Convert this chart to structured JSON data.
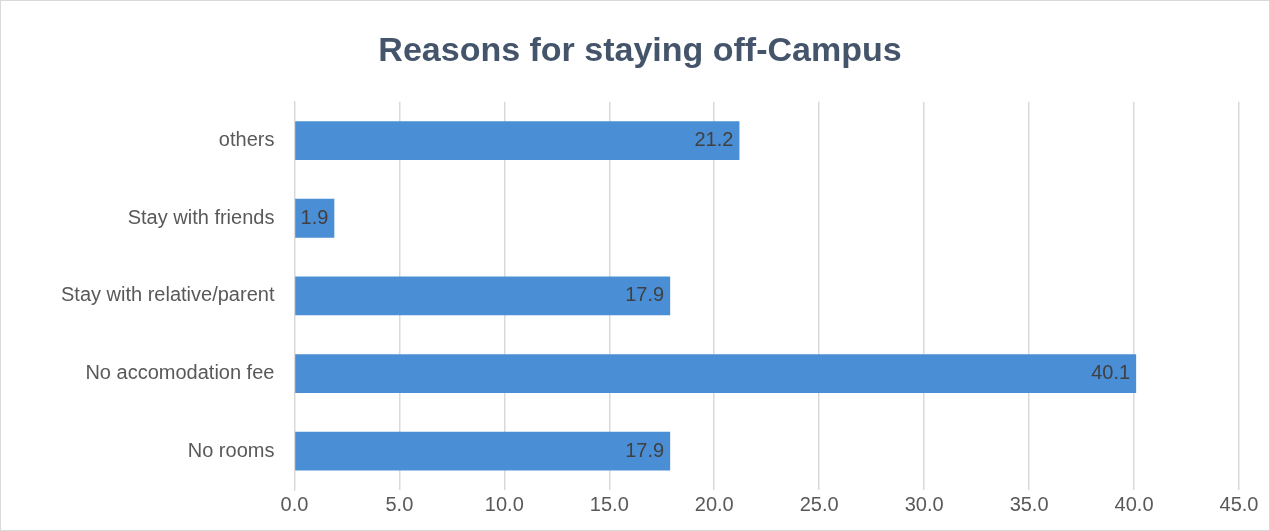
{
  "chart_data": {
    "type": "bar",
    "orientation": "horizontal",
    "title": "Reasons for staying off-Campus",
    "categories": [
      "others",
      "Stay with friends",
      "Stay with relative/parent",
      "No accomodation fee",
      "No rooms"
    ],
    "values": [
      21.2,
      1.9,
      17.9,
      40.1,
      17.9
    ],
    "color": "#4a8fd6",
    "xlim": [
      0,
      45
    ],
    "xticks": [
      {
        "value": 0,
        "label": "0.0"
      },
      {
        "value": 5,
        "label": "5.0"
      },
      {
        "value": 10,
        "label": "10.0"
      },
      {
        "value": 15,
        "label": "15.0"
      },
      {
        "value": 20,
        "label": "20.0"
      },
      {
        "value": 25,
        "label": "25.0"
      },
      {
        "value": 30,
        "label": "30.0"
      },
      {
        "value": 35,
        "label": "35.0"
      },
      {
        "value": 40,
        "label": "40.0"
      },
      {
        "value": 45,
        "label": "45.0"
      }
    ],
    "grid": "x",
    "data_labels": true,
    "legend": false
  }
}
